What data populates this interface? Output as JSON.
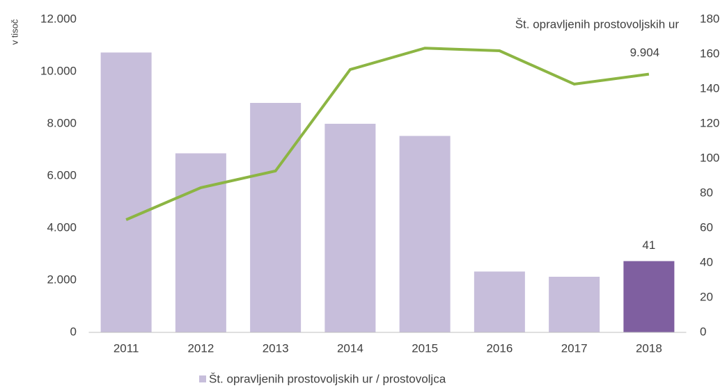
{
  "chart_data": {
    "type": "bar_line",
    "y_label": "v tisoč",
    "categories": [
      "2011",
      "2012",
      "2013",
      "2014",
      "2015",
      "2016",
      "2017",
      "2018"
    ],
    "series": [
      {
        "name": "Št. opravljenih prostovoljskih ur / prostovoljca",
        "type": "bar",
        "axis": "y2",
        "colors": [
          "#c7bedb",
          "#c7bedb",
          "#c7bedb",
          "#c7bedb",
          "#c7bedb",
          "#c7bedb",
          "#c7bedb",
          "#7f5fa0"
        ],
        "values": [
          161,
          103,
          132,
          120,
          113,
          35,
          32,
          41
        ],
        "value_labels": [
          null,
          null,
          null,
          null,
          null,
          null,
          null,
          "41"
        ]
      },
      {
        "name": "Št. opravljenih prostovoljskih ur",
        "type": "line",
        "axis": "y",
        "color": "#8cb543",
        "values": [
          4320,
          5550,
          6190,
          10080,
          10900,
          10800,
          9520,
          9904
        ],
        "value_labels": [
          null,
          null,
          null,
          null,
          null,
          null,
          null,
          "9.904"
        ]
      }
    ],
    "ylim": [
      0,
      12000
    ],
    "yticks": [
      0,
      {
        "value": 2000,
        "label": "2.000"
      },
      {
        "value": 4000,
        "label": "4.000"
      },
      {
        "value": 6000,
        "label": "6.000"
      },
      {
        "value": 8000,
        "label": "8.000"
      },
      {
        "value": 10000,
        "label": "10.000"
      },
      {
        "value": 12000,
        "label": "12.000"
      }
    ],
    "y2lim": [
      0,
      180
    ],
    "y2ticks": [
      0,
      20,
      40,
      60,
      80,
      100,
      120,
      140,
      160,
      180
    ],
    "grid": false,
    "legend": "bottom"
  }
}
